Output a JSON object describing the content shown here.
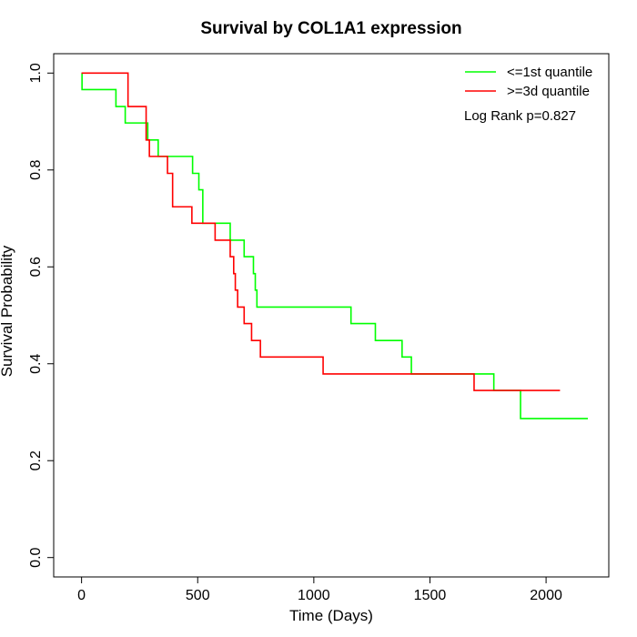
{
  "chart_data": {
    "type": "line",
    "title": "Survival by COL1A1 expression",
    "xlabel": "Time (Days)",
    "ylabel": "Survival Probability",
    "xlim": [
      -120,
      2270
    ],
    "ylim": [
      -0.04,
      1.04
    ],
    "x_ticks": [
      0,
      500,
      1000,
      1500,
      2000
    ],
    "y_ticks": [
      0.0,
      0.2,
      0.4,
      0.6,
      0.8,
      1.0
    ],
    "x_tick_labels": [
      "0",
      "500",
      "1000",
      "1500",
      "2000"
    ],
    "y_tick_labels": [
      "0.0",
      "0.2",
      "0.4",
      "0.6",
      "0.8",
      "1.0"
    ],
    "grid": false,
    "legend_position": "top-right",
    "annotation": "Log Rank p=0.827",
    "series": [
      {
        "name": "<=1st quantile",
        "color": "#00ff00",
        "steps": [
          [
            0,
            1.0
          ],
          [
            2,
            0.966
          ],
          [
            148,
            0.931
          ],
          [
            188,
            0.897
          ],
          [
            285,
            0.862
          ],
          [
            330,
            0.828
          ],
          [
            478,
            0.793
          ],
          [
            505,
            0.759
          ],
          [
            522,
            0.69
          ],
          [
            640,
            0.655
          ],
          [
            700,
            0.621
          ],
          [
            740,
            0.586
          ],
          [
            748,
            0.552
          ],
          [
            755,
            0.517
          ],
          [
            1160,
            0.483
          ],
          [
            1265,
            0.448
          ],
          [
            1380,
            0.414
          ],
          [
            1420,
            0.379
          ],
          [
            1775,
            0.345
          ],
          [
            1890,
            0.287
          ],
          [
            2180,
            0.287
          ]
        ]
      },
      {
        "name": ">=3d quantile",
        "color": "#ff0000",
        "steps": [
          [
            0,
            1.0
          ],
          [
            200,
            0.931
          ],
          [
            278,
            0.862
          ],
          [
            292,
            0.828
          ],
          [
            370,
            0.793
          ],
          [
            392,
            0.724
          ],
          [
            475,
            0.69
          ],
          [
            575,
            0.655
          ],
          [
            640,
            0.621
          ],
          [
            655,
            0.586
          ],
          [
            662,
            0.552
          ],
          [
            672,
            0.517
          ],
          [
            700,
            0.483
          ],
          [
            732,
            0.448
          ],
          [
            770,
            0.414
          ],
          [
            1040,
            0.379
          ],
          [
            1690,
            0.345
          ],
          [
            2060,
            0.345
          ]
        ]
      }
    ]
  }
}
